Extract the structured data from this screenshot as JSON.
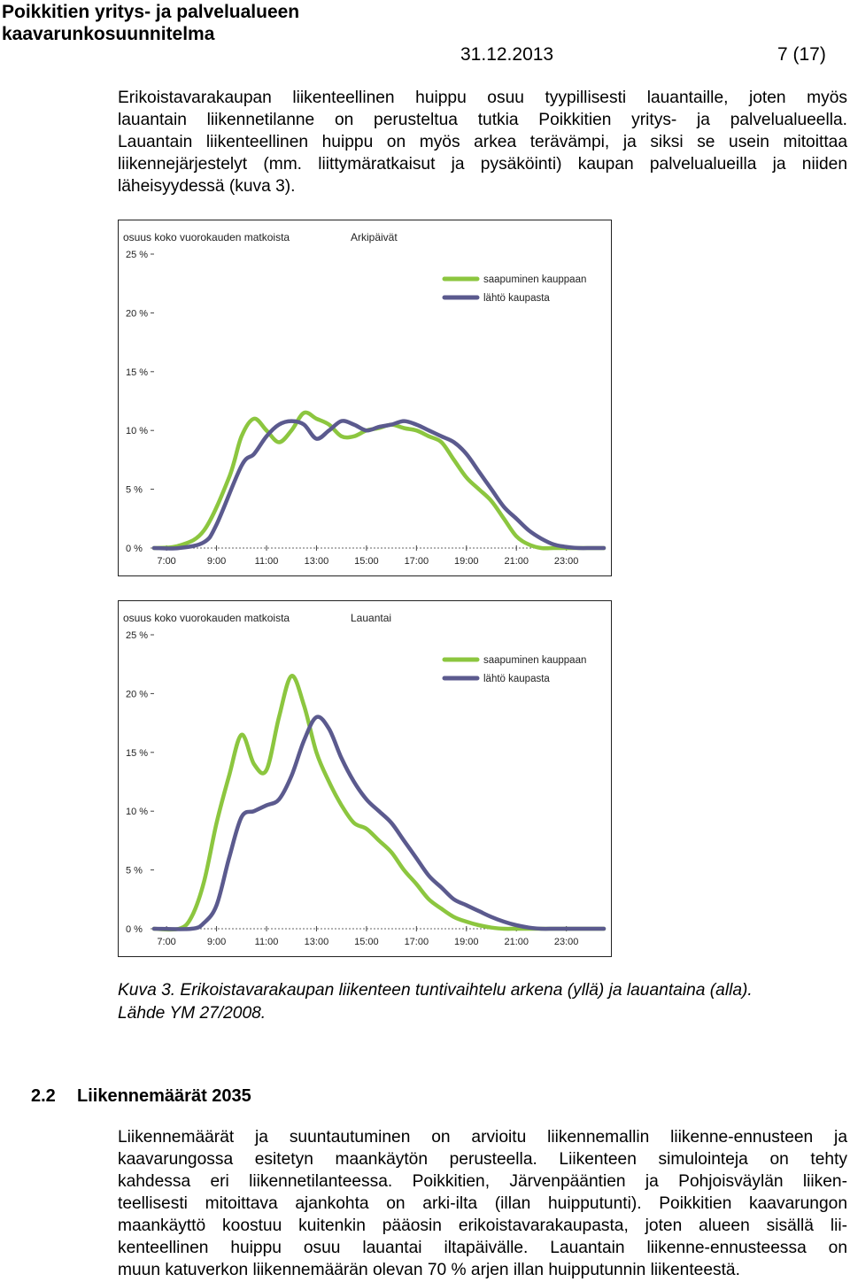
{
  "header": {
    "title_line1": "Poikkitien yritys- ja palvelualueen",
    "title_line2": "kaavarunkosuunnitelma",
    "date": "31.12.2013",
    "page": "7 (17)"
  },
  "intro_paragraph": [
    "Erikoistavarakaupan liikenteellinen huippu osuu tyypillisesti lauantaille, joten myös",
    "lauantain liikennetilanne on perusteltua tutkia Poikkitien yritys- ja palvelualueella.",
    "Lauantain liikenteellinen huippu on myös arkea terävämpi, ja siksi se usein mitoittaa",
    "liikennejärjestelyt (mm. liittymäratkaisut ja pysäköinti) kaupan palvelualueilla ja niiden",
    "läheisyydessä (kuva 3)."
  ],
  "colors": {
    "arrival": "#8cc63f",
    "departure": "#5b5a8e"
  },
  "chart_data": [
    {
      "type": "line",
      "title": "Arkipäivät",
      "ylabel": "osuus koko vuorokauden matkoista",
      "x_ticks": [
        "7:00",
        "9:00",
        "11:00",
        "13:00",
        "15:00",
        "17:00",
        "19:00",
        "21:00",
        "23:00"
      ],
      "y_ticks": [
        "0 %",
        "5 %",
        "10 %",
        "15 %",
        "20 %",
        "25 %"
      ],
      "ylim": [
        0,
        25
      ],
      "xlim": [
        6.5,
        24.5
      ],
      "legend_position": "top-right",
      "series": [
        {
          "name": "saapuminen kauppaan",
          "color": "#8cc63f",
          "x": [
            6.5,
            7.5,
            8.5,
            9.5,
            10.0,
            10.5,
            11.0,
            11.5,
            12.0,
            12.5,
            13.0,
            13.5,
            14.0,
            14.5,
            15.0,
            15.5,
            16.0,
            16.5,
            17.0,
            17.5,
            18.0,
            18.5,
            19.0,
            19.5,
            20.0,
            20.5,
            21.0,
            21.5,
            22.0,
            22.5,
            23.0,
            23.5,
            24.0,
            24.5
          ],
          "y": [
            0.0,
            0.2,
            1.5,
            6.0,
            9.5,
            11.0,
            10.0,
            9.0,
            10.0,
            11.5,
            11.0,
            10.5,
            9.5,
            9.5,
            10.0,
            10.2,
            10.5,
            10.2,
            10.0,
            9.5,
            9.0,
            7.5,
            6.0,
            5.0,
            4.0,
            2.5,
            1.0,
            0.3,
            0.0,
            0.0,
            0.0,
            0.0,
            0.0,
            0.0
          ]
        },
        {
          "name": "lähtö kaupasta",
          "color": "#5b5a8e",
          "x": [
            6.5,
            7.5,
            8.5,
            9.0,
            10.0,
            10.5,
            11.0,
            11.5,
            12.0,
            12.5,
            13.0,
            13.5,
            14.0,
            14.5,
            15.0,
            15.5,
            16.0,
            16.5,
            17.0,
            17.5,
            18.0,
            18.5,
            19.0,
            19.5,
            20.0,
            20.5,
            21.0,
            21.5,
            22.0,
            22.5,
            23.0,
            23.5,
            24.0,
            24.5
          ],
          "y": [
            0.0,
            0.0,
            0.5,
            2.0,
            7.0,
            8.0,
            9.5,
            10.5,
            10.8,
            10.5,
            9.3,
            10.0,
            10.8,
            10.5,
            10.0,
            10.3,
            10.5,
            10.8,
            10.5,
            10.0,
            9.5,
            9.0,
            8.0,
            6.5,
            5.0,
            3.5,
            2.5,
            1.5,
            0.8,
            0.3,
            0.1,
            0.0,
            0.0,
            0.0
          ]
        }
      ]
    },
    {
      "type": "line",
      "title": "Lauantai",
      "ylabel": "osuus koko vuorokauden matkoista",
      "x_ticks": [
        "7:00",
        "9:00",
        "11:00",
        "13:00",
        "15:00",
        "17:00",
        "19:00",
        "21:00",
        "23:00"
      ],
      "y_ticks": [
        "0 %",
        "5 %",
        "10 %",
        "15 %",
        "20 %",
        "25 %"
      ],
      "ylim": [
        0,
        25
      ],
      "xlim": [
        6.5,
        24.5
      ],
      "legend_position": "top-right",
      "series": [
        {
          "name": "saapuminen kauppaan",
          "color": "#8cc63f",
          "x": [
            6.5,
            7.5,
            8.0,
            8.5,
            9.0,
            9.5,
            10.0,
            10.5,
            11.0,
            11.5,
            12.0,
            12.5,
            13.0,
            13.5,
            14.0,
            14.5,
            15.0,
            15.5,
            16.0,
            16.5,
            17.0,
            17.5,
            18.0,
            18.5,
            19.0,
            19.5,
            20.0,
            20.5,
            21.0,
            21.5,
            22.0,
            22.5,
            23.0,
            24.0,
            24.5
          ],
          "y": [
            0.0,
            0.0,
            1.0,
            4.0,
            9.0,
            13.0,
            16.5,
            14.0,
            13.5,
            18.0,
            21.5,
            19.0,
            15.0,
            12.5,
            10.5,
            9.0,
            8.5,
            7.5,
            6.5,
            5.0,
            3.8,
            2.5,
            1.7,
            1.0,
            0.6,
            0.3,
            0.1,
            0.0,
            0.0,
            0.0,
            0.0,
            0.0,
            0.0,
            0.0,
            0.0
          ]
        },
        {
          "name": "lähtö kaupasta",
          "color": "#5b5a8e",
          "x": [
            6.5,
            8.0,
            8.5,
            9.0,
            9.5,
            10.0,
            10.5,
            11.0,
            11.5,
            12.0,
            12.5,
            13.0,
            13.5,
            14.0,
            14.5,
            15.0,
            15.5,
            16.0,
            16.5,
            17.0,
            17.5,
            18.0,
            18.5,
            19.0,
            19.5,
            20.0,
            20.5,
            21.0,
            21.5,
            22.0,
            22.5,
            23.0,
            24.0,
            24.5
          ],
          "y": [
            0.0,
            0.0,
            0.5,
            2.0,
            6.0,
            9.5,
            10.0,
            10.5,
            11.0,
            13.0,
            16.0,
            18.0,
            17.0,
            14.5,
            12.5,
            11.0,
            10.0,
            9.0,
            7.5,
            6.0,
            4.5,
            3.5,
            2.5,
            2.0,
            1.5,
            1.0,
            0.6,
            0.3,
            0.1,
            0.0,
            0.0,
            0.0,
            0.0,
            0.0
          ]
        }
      ]
    }
  ],
  "caption": {
    "line1": "Kuva 3. Erikoistavarakaupan liikenteen tuntivaihtelu arkena (yllä) ja lauantaina (alla).",
    "line2": "Lähde YM 27/2008."
  },
  "section": {
    "number": "2.2",
    "title": "Liikennemäärät 2035"
  },
  "section_paragraph": [
    "Liikennemäärät ja suuntautuminen on arvioitu liikennemallin liikenne-ennusteen ja",
    "kaavarungossa esitetyn maankäytön perusteella. Liikenteen simulointeja on tehty",
    "kahdessa eri liikennetilanteessa. Poikkitien, Järvenpääntien ja Pohjoisväylän liiken-",
    "teellisesti mitoittava ajankohta on arki-ilta (illan huipputunti). Poikkitien kaavarungon",
    "maankäyttö koostuu kuitenkin pääosin erikoistavarakaupasta, joten alueen sisällä lii-",
    "kenteellinen huippu osuu lauantai iltapäivälle. Lauantain liikenne-ennusteessa on",
    "muun katuverkon liikennemäärän olevan 70 % arjen illan huipputunnin liikenteestä."
  ]
}
